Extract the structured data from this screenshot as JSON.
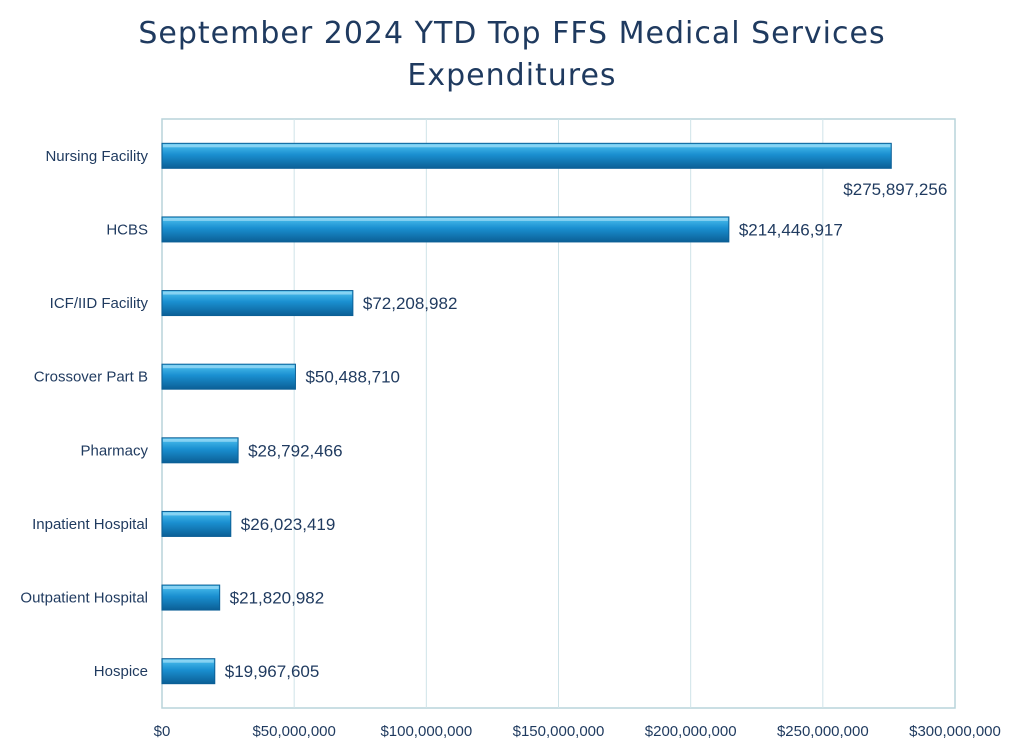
{
  "chart_data": {
    "type": "bar",
    "orientation": "horizontal",
    "title_line1": "September 2024 YTD Top FFS Medical Services",
    "title_line2": "Expenditures",
    "categories": [
      "Nursing Facility",
      "HCBS",
      "ICF/IID Facility",
      "Crossover Part B",
      "Pharmacy",
      "Inpatient Hospital",
      "Outpatient Hospital",
      "Hospice"
    ],
    "values": [
      275897256,
      214446917,
      72208982,
      50488710,
      28792466,
      26023419,
      21820982,
      19967605
    ],
    "data_labels": [
      "$275,897,256",
      "$214,446,917",
      "$72,208,982",
      "$50,488,710",
      "$28,792,466",
      "$26,023,419",
      "$21,820,982",
      "$19,967,605"
    ],
    "xlim": [
      0,
      300000000
    ],
    "x_ticks": [
      0,
      50000000,
      100000000,
      150000000,
      200000000,
      250000000,
      300000000
    ],
    "x_tick_labels": [
      "$0",
      "$50,000,000",
      "$100,000,000",
      "$150,000,000",
      "$200,000,000",
      "$250,000,000",
      "$300,000,000"
    ],
    "xlabel": "",
    "ylabel": "",
    "grid": "vertical",
    "legend": "none",
    "colors": {
      "bar_light": "#4fc3f0",
      "bar_mid": "#1a8fd0",
      "bar_dark": "#0b5f96",
      "title": "#1f3a5f",
      "text": "#1f3a5f",
      "grid": "#cfe3e8",
      "frame": "#b8d4da"
    }
  }
}
